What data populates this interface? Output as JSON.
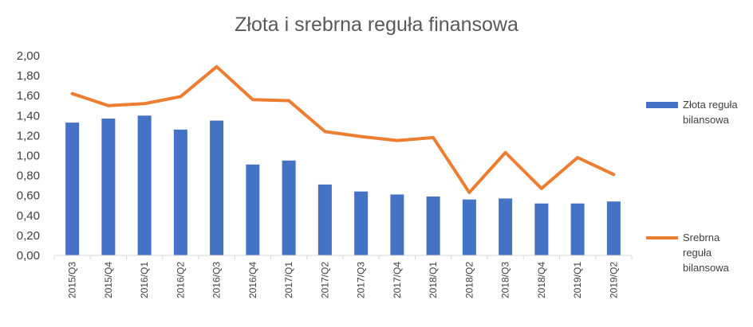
{
  "chart_data": {
    "type": "bar",
    "title": "Złota i srebrna reguła finansowa",
    "xlabel": "",
    "ylabel": "",
    "ylim": [
      0,
      2
    ],
    "yticks": [
      "0,00",
      "0,20",
      "0,40",
      "0,60",
      "0,80",
      "1,00",
      "1,20",
      "1,40",
      "1,60",
      "1,80",
      "2,00"
    ],
    "grid": false,
    "legend_position": "right",
    "categories": [
      "2015/Q3",
      "2015/Q4",
      "2016/Q1",
      "2016/Q2",
      "2016/Q3",
      "2016/Q4",
      "2017/Q1",
      "2017/Q2",
      "2017/Q3",
      "2017/Q4",
      "2018/Q1",
      "2018/Q2",
      "2018/Q3",
      "2018/Q4",
      "2019/Q1",
      "2019/Q2"
    ],
    "series": [
      {
        "name": "Złota reguła bilansowa",
        "legend_lines": [
          "Złota reguła",
          "bilansowa"
        ],
        "type": "bar",
        "color": "#4472C4",
        "values": [
          1.33,
          1.37,
          1.4,
          1.26,
          1.35,
          0.91,
          0.95,
          0.71,
          0.64,
          0.61,
          0.59,
          0.56,
          0.57,
          0.52,
          0.52,
          0.54
        ]
      },
      {
        "name": "Srebrna reguła bilansowa",
        "legend_lines": [
          "Srebrna",
          "reguła",
          "bilansowa"
        ],
        "type": "line",
        "color": "#ED7D31",
        "values": [
          1.62,
          1.5,
          1.52,
          1.59,
          1.89,
          1.56,
          1.55,
          1.24,
          1.19,
          1.15,
          1.18,
          0.63,
          1.03,
          0.67,
          0.98,
          0.81
        ]
      }
    ]
  }
}
